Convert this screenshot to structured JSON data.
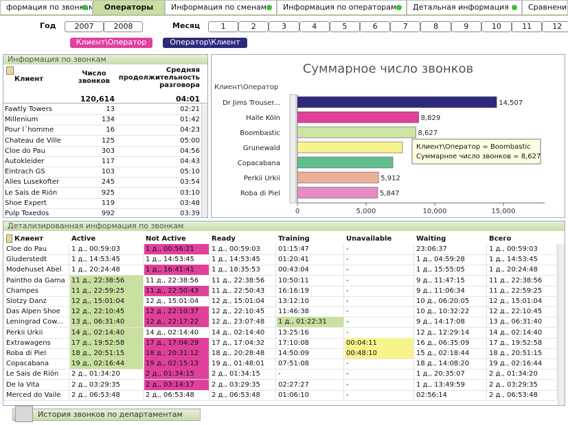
{
  "tabs": {
    "items": [
      "формация по звонкам",
      "Операторы",
      "Информация по сменам",
      "Информация по операторам",
      "Детальная информация",
      "Сравнение"
    ],
    "active": 1
  },
  "filters": {
    "year_label": "Год",
    "years": [
      "2007",
      "2008"
    ],
    "month_label": "Месяц",
    "months": [
      "1",
      "2",
      "3",
      "4",
      "5",
      "6",
      "7",
      "8",
      "9",
      "10",
      "11",
      "12"
    ]
  },
  "buttons": [
    "Клиент\\Оператор",
    "Оператор\\Клиент"
  ],
  "calls_table": {
    "title": "Информация по звонкам",
    "columns": [
      "Клиент",
      "Число звонков",
      "Средняя продолжительность разговора"
    ],
    "totals": [
      "120,614",
      "04:01"
    ],
    "rows": [
      [
        "Fawtly Towers",
        "13",
        "02:21"
      ],
      [
        "Millenium",
        "134",
        "01:42"
      ],
      [
        "Pour l´homme",
        "16",
        "04:23"
      ],
      [
        "Chateau de Ville",
        "125",
        "05:00"
      ],
      [
        "Cloe do Pau",
        "303",
        "04:56"
      ],
      [
        "Autokleider",
        "117",
        "04:43"
      ],
      [
        "Eintrach GS",
        "103",
        "05:10"
      ],
      [
        "Alles Lusekofter",
        "245",
        "03:54"
      ],
      [
        "Le Sais de Rión",
        "925",
        "03:10"
      ],
      [
        "Shoe Expert",
        "119",
        "03:48"
      ],
      [
        "Pulp Toxedos",
        "992",
        "03:39"
      ]
    ]
  },
  "chart_data": {
    "type": "bar",
    "orientation": "horizontal",
    "title": "Суммарное число звонков",
    "dimension_label": "Клиент\\Оператор",
    "categories": [
      "Dr Jims Trouser...",
      "Halle Köln",
      "Boombastic",
      "Grunewald",
      "Copacabana",
      "Perkii Urkii",
      "Roba di Piel"
    ],
    "values": [
      14507,
      8829,
      8627,
      7650,
      6950,
      5912,
      5847
    ],
    "value_labels": [
      "14,507",
      "8,829",
      "8,627",
      null,
      null,
      "5,912",
      "5,847"
    ],
    "colors": [
      "#2e2a7a",
      "#e0409a",
      "#cfe3a3",
      "#f8f48c",
      "#5fbf8e",
      "#eab198",
      "#e88cc8"
    ],
    "xlim": [
      0,
      18000
    ],
    "xticks": [
      0,
      {
        "value": 5000,
        "label": "5,000"
      },
      {
        "value": 10000,
        "label": "10,000"
      },
      {
        "value": 15000,
        "label": "15,000"
      }
    ],
    "tooltip": [
      "Клиент\\Оператор = Boombastic",
      "Суммарное число звонков = 8,627"
    ]
  },
  "detail_table": {
    "title": "Детализированная информация по звонкам",
    "columns": [
      "Клиент",
      "Active",
      "Not Active",
      "Ready",
      "Training",
      "Unavailable",
      "Waiting",
      "Всего"
    ],
    "rows": [
      {
        "cells": [
          "Cloe do Pau",
          "1 д., 00:59:03",
          "1 д., 00:56:21",
          "1 д., 00:59:03",
          "01:15:47",
          "-",
          "23:06:37",
          "1 д., 00:59:03"
        ],
        "colors": [
          null,
          null,
          "#e0409a",
          null,
          null,
          null,
          null,
          null
        ]
      },
      {
        "cells": [
          "Gluderstedt",
          "1 д., 14:53:45",
          "1 д., 14:53:45",
          "1 д., 14:53:45",
          "01:20:41",
          "-",
          "1 д., 04:59:28",
          "1 д., 14:53:45"
        ],
        "colors": [
          null,
          null,
          null,
          null,
          null,
          null,
          null,
          null
        ]
      },
      {
        "cells": [
          "Modehuset Abel",
          "1 д., 20:24:48",
          "1 д., 16:41:41",
          "1 д., 18:35:53",
          "00:43:04",
          "-",
          "1 д., 15:55:05",
          "1 д., 20:24:48"
        ],
        "colors": [
          null,
          null,
          "#e0409a",
          null,
          null,
          null,
          null,
          null
        ]
      },
      {
        "cells": [
          "Paintho da Gama",
          "11 д., 22:38:56",
          "11 д., 22:38:56",
          "11 д., 22:38:56",
          "10:50:11",
          "-",
          "9 д., 11:47:15",
          "11 д., 22:38:56"
        ],
        "colors": [
          null,
          "#c9e0a0",
          null,
          null,
          null,
          null,
          null,
          null
        ]
      },
      {
        "cells": [
          "Champes",
          "11 д., 22:59:25",
          "11 д., 22:50:43",
          "11 д., 22:50:43",
          "16:16:19",
          "-",
          "9 д., 11:06:34",
          "11 д., 22:59:25"
        ],
        "colors": [
          null,
          "#c9e0a0",
          "#e0409a",
          null,
          null,
          null,
          null,
          null
        ]
      },
      {
        "cells": [
          "Slotzy Danz",
          "12 д., 15:01:04",
          "12 д., 15:01:04",
          "12 д., 15:01:04",
          "13:12:10",
          "-",
          "10 д., 06:20:05",
          "12 д., 15:01:04"
        ],
        "colors": [
          null,
          "#c9e0a0",
          null,
          null,
          null,
          null,
          null,
          null
        ]
      },
      {
        "cells": [
          "Das Alpen Shoe",
          "12 д., 22:10:45",
          "12 д., 22:10:37",
          "12 д., 22:10:45",
          "11:46:38",
          "-",
          "10 д., 10:32:22",
          "12 д., 22:10:45"
        ],
        "colors": [
          null,
          "#c9e0a0",
          "#e0409a",
          null,
          null,
          null,
          null,
          null
        ]
      },
      {
        "cells": [
          "Leningrad Cow...",
          "13 д., 06:31:40",
          "12 д., 22:17:22",
          "12 д., 23:07:48",
          "1 д., 01:22:31",
          "-",
          "9 д., 14:17:08",
          "13 д., 06:31:40"
        ],
        "colors": [
          null,
          "#c9e0a0",
          "#e0409a",
          null,
          "#c9e0a0",
          null,
          null,
          null
        ]
      },
      {
        "cells": [
          "Perkii Urkii",
          "14 д., 02:14:40",
          "14 д., 02:14:40",
          "14 д., 02:14:40",
          "13:25:16",
          "-",
          "12 д., 12:29:14",
          "14 д., 02:14:40"
        ],
        "colors": [
          null,
          "#c9e0a0",
          null,
          null,
          null,
          null,
          null,
          null
        ]
      },
      {
        "cells": [
          "Extrawagens",
          "17 д., 19:52:58",
          "17 д., 17:04:29",
          "17 д., 17:04:32",
          "17:10:08",
          "00:04:11",
          "16 д., 06:35:09",
          "17 д., 19:52:58"
        ],
        "colors": [
          null,
          "#c9e0a0",
          "#e0409a",
          null,
          null,
          "#f8f48c",
          null,
          null
        ]
      },
      {
        "cells": [
          "Roba di Piel",
          "18 д., 20:51:15",
          "18 д., 20:31:12",
          "18 д., 20:28:48",
          "14:50:09",
          "00:48:10",
          "15 д., 02:18:44",
          "18 д., 20:51:15"
        ],
        "colors": [
          null,
          "#c9e0a0",
          "#e0409a",
          null,
          null,
          "#f8f48c",
          null,
          null
        ]
      },
      {
        "cells": [
          "Copacabana",
          "19 д., 02:16:44",
          "19 д., 02:15:13",
          "19 д., 01:48:01",
          "07:51:08",
          "-",
          "18 д., 14:08:20",
          "19 д., 02:16:44"
        ],
        "colors": [
          null,
          "#c9e0a0",
          "#e0409a",
          null,
          null,
          null,
          null,
          null
        ]
      },
      {
        "cells": [
          "Le Sais de Rión",
          "2 д., 01:34:20",
          "2 д., 01:34:15",
          "2 д., 01:34:15",
          "-",
          "-",
          "1 д., 20:35:07",
          "2 д., 01:34:20"
        ],
        "colors": [
          null,
          null,
          "#e0409a",
          null,
          null,
          null,
          null,
          null
        ]
      },
      {
        "cells": [
          "De la Vita",
          "2 д., 03:29:35",
          "2 д., 03:14:17",
          "2 д., 03:29:35",
          "02:27:27",
          "-",
          "1 д., 13:49:59",
          "2 д., 03:29:35"
        ],
        "colors": [
          null,
          null,
          "#e0409a",
          null,
          null,
          null,
          null,
          null
        ]
      },
      {
        "cells": [
          "Merced do Vaile",
          "2 д., 06:53:48",
          "2 д., 06:53:48",
          "2 д., 06:53:48",
          "01:06:10",
          "-",
          "02:56:14",
          "2 д., 06:53:48"
        ],
        "colors": [
          null,
          null,
          null,
          null,
          null,
          null,
          null,
          null
        ]
      }
    ]
  },
  "footer_button": "История звонков по департаментам"
}
